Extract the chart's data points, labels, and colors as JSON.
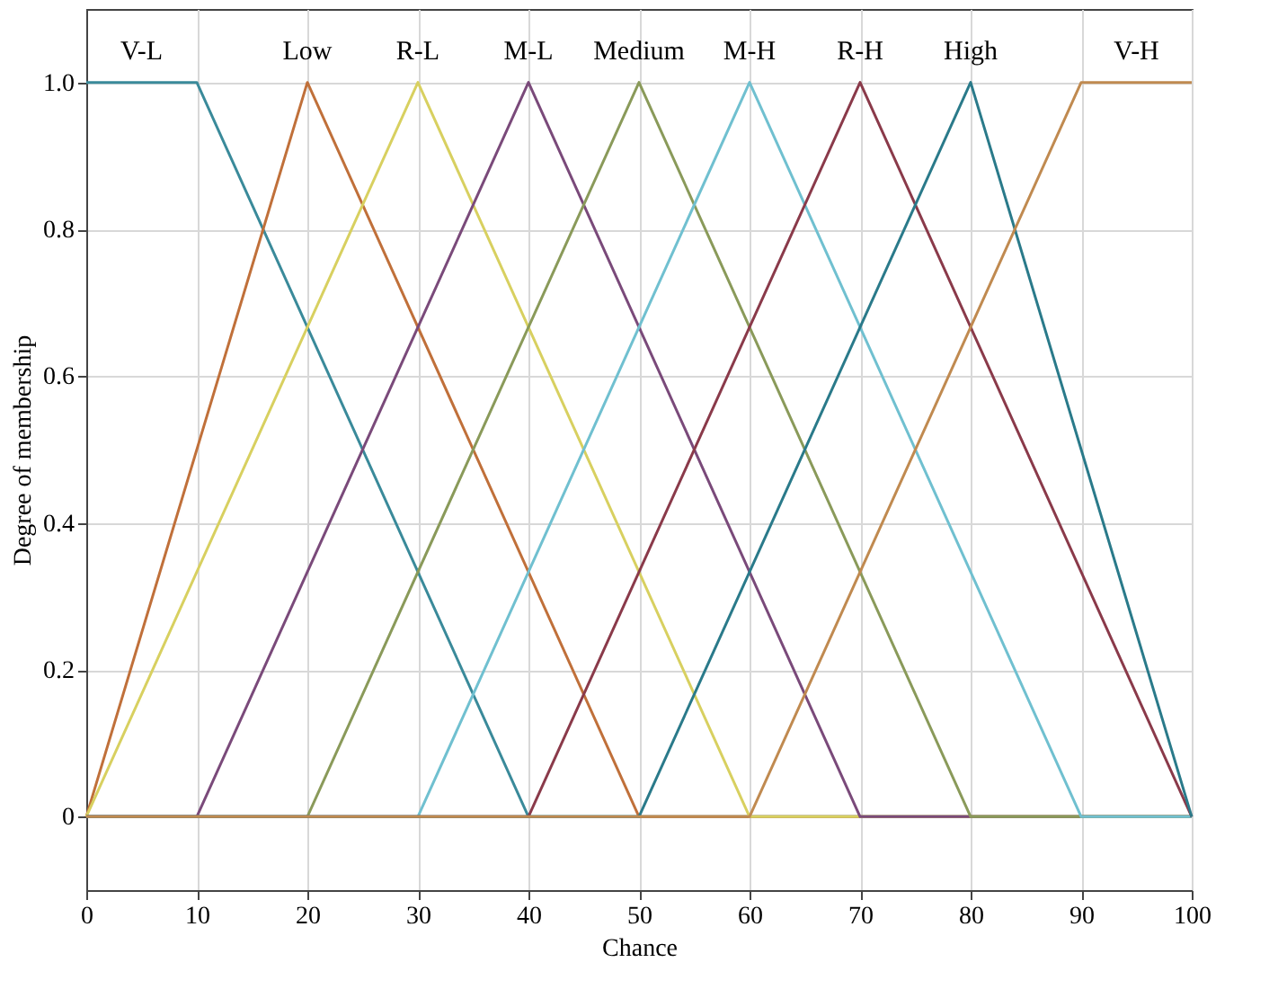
{
  "chart_data": {
    "type": "line",
    "xlabel": "Chance",
    "ylabel": "Degree of membership",
    "xlim": [
      0,
      100
    ],
    "xticks": [
      0,
      10,
      20,
      30,
      40,
      50,
      60,
      70,
      80,
      90,
      100
    ],
    "ylim": [
      -0.1,
      1.1
    ],
    "yticks": [
      0,
      {
        "value": 0.2,
        "label": "0.2"
      },
      {
        "value": 0.4,
        "label": "0.4"
      },
      {
        "value": 0.6,
        "label": "0.6"
      },
      {
        "value": 0.8,
        "label": "0.8"
      },
      {
        "value": 1,
        "label": "1.0"
      }
    ],
    "grid": true,
    "legend": false,
    "marker": "none",
    "line_style": "solid",
    "series": [
      {
        "name": "V-L",
        "color": "#3a8a9a",
        "x": [
          0,
          10,
          40,
          100
        ],
        "values": [
          1,
          1,
          0,
          0
        ]
      },
      {
        "name": "Low",
        "color": "#c0703a",
        "x": [
          0,
          20,
          50,
          100
        ],
        "values": [
          0,
          1,
          0,
          0
        ]
      },
      {
        "name": "R-L",
        "color": "#d8d060",
        "x": [
          0,
          30,
          60,
          100
        ],
        "values": [
          0,
          1,
          0,
          0
        ]
      },
      {
        "name": "M-L",
        "color": "#7a4a7a",
        "x": [
          0,
          10,
          40,
          70,
          100
        ],
        "values": [
          0,
          0,
          1,
          0,
          0
        ]
      },
      {
        "name": "Medium",
        "color": "#8a9a5a",
        "x": [
          0,
          20,
          50,
          80,
          100
        ],
        "values": [
          0,
          0,
          1,
          0,
          0
        ]
      },
      {
        "name": "M-H",
        "color": "#70c0d0",
        "x": [
          0,
          30,
          60,
          90,
          100
        ],
        "values": [
          0,
          0,
          1,
          0,
          0
        ]
      },
      {
        "name": "R-H",
        "color": "#8a3a4a",
        "x": [
          0,
          40,
          70,
          100
        ],
        "values": [
          0,
          0,
          1,
          0
        ]
      },
      {
        "name": "High",
        "color": "#2a7a8a",
        "x": [
          0,
          50,
          80,
          100
        ],
        "values": [
          0,
          0,
          1,
          0
        ]
      },
      {
        "name": "V-H",
        "color": "#c08a50",
        "x": [
          0,
          60,
          90,
          100
        ],
        "values": [
          0,
          0,
          1,
          1
        ]
      }
    ]
  }
}
